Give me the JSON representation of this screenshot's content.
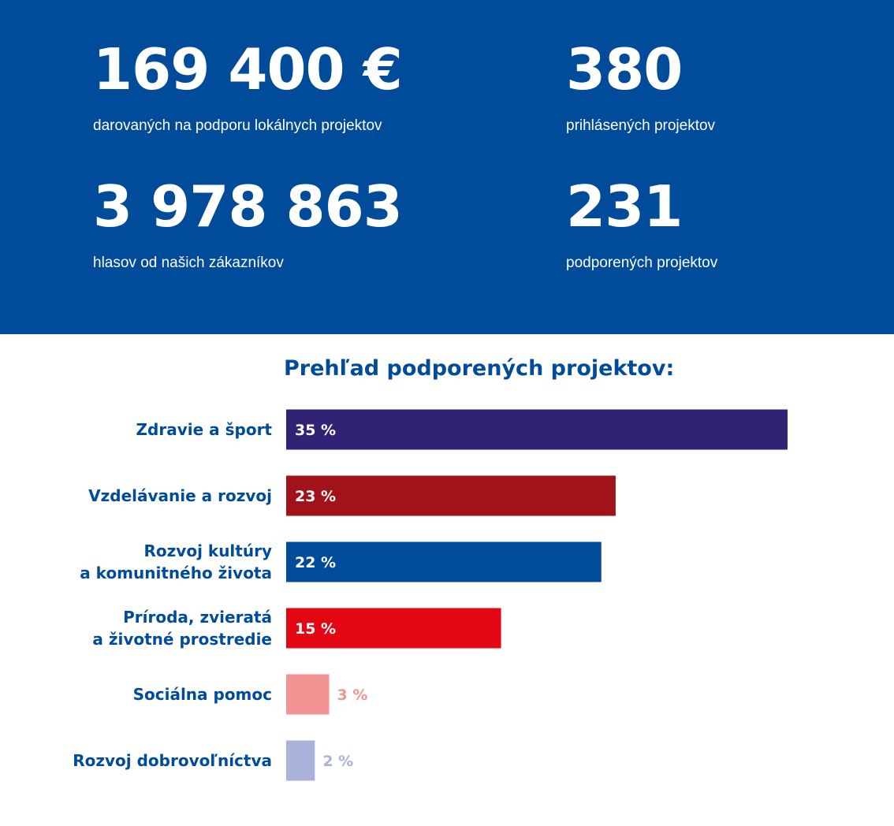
{
  "stats": [
    {
      "value": "169 400 €",
      "label": "darovaných na podporu lokálnych projektov"
    },
    {
      "value": "380",
      "label": "prihlásených projektov"
    },
    {
      "value": "3 978 863",
      "label": "hlasov od našich zákazníkov"
    },
    {
      "value": "231",
      "label": "podporených projektov"
    }
  ],
  "colors": {
    "header_bg": "#004b9a",
    "label_text": "#004b9a",
    "bars": [
      "#312276",
      "#a21219",
      "#004b9a",
      "#e30613",
      "#f29494",
      "#aab1db"
    ]
  },
  "chart_data": {
    "type": "bar",
    "orientation": "horizontal",
    "title": "Prehľad podporených projektov:",
    "categories": [
      [
        "Zdravie a šport"
      ],
      [
        "Vzdelávanie a rozvoj"
      ],
      [
        "Rozvoj kultúry",
        "a komunitného života"
      ],
      [
        "Príroda, zvieratá",
        "a životné prostredie"
      ],
      [
        "Sociálna pomoc"
      ],
      [
        "Rozvoj dobrovoľníctva"
      ]
    ],
    "values": [
      35,
      23,
      22,
      15,
      3,
      2
    ],
    "value_labels": [
      "35 %",
      "23 %",
      "22 %",
      "15 %",
      "3 %",
      "2 %"
    ],
    "unit": "%",
    "grid": false,
    "legend": "none"
  }
}
